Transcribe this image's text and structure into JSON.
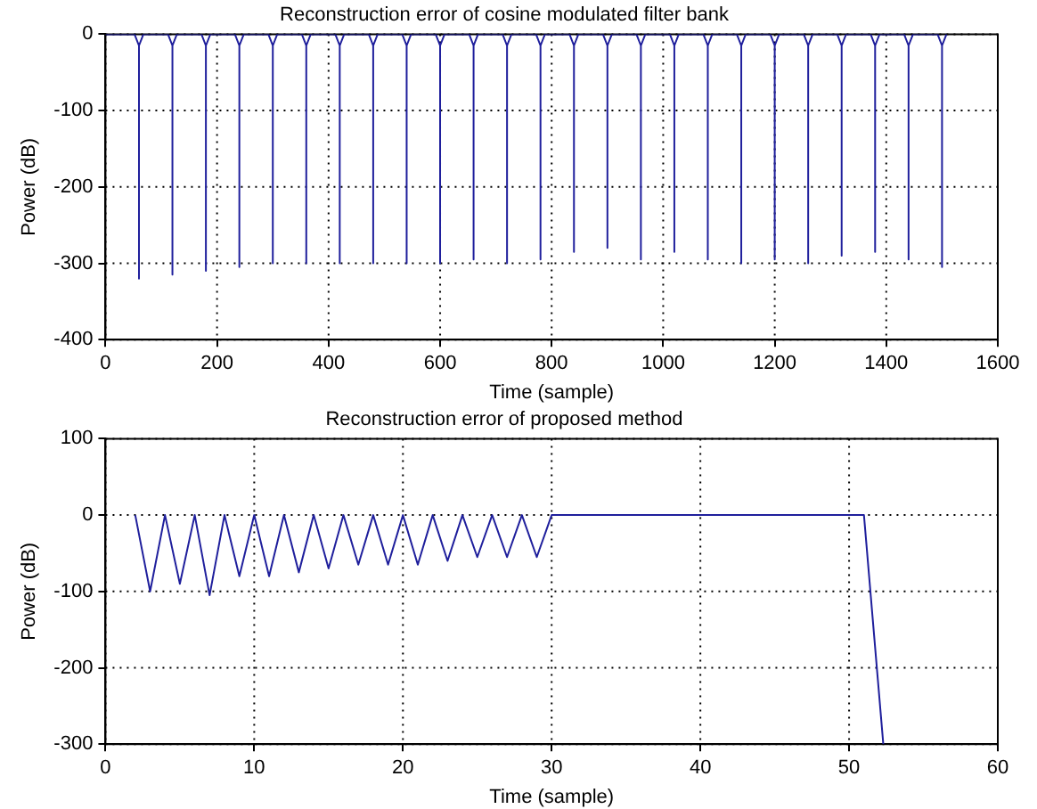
{
  "chart_data": [
    {
      "type": "line",
      "title": "Reconstruction error of cosine modulated filter bank",
      "xlabel": "Time (sample)",
      "ylabel": "Power (dB)",
      "xlim": [
        0,
        1600
      ],
      "xticks": [
        0,
        200,
        400,
        600,
        800,
        1000,
        1200,
        1400,
        1600
      ],
      "ylim": [
        -400,
        0
      ],
      "yticks": [
        -400,
        -300,
        -200,
        -100,
        0
      ],
      "grid": true,
      "legend": false,
      "marker": "none",
      "line_style": "solid",
      "series": [
        {
          "color": "#1f1f9c",
          "x": [
            0,
            52,
            60,
            60,
            60,
            68,
            112,
            120,
            120,
            120,
            128,
            172,
            180,
            180,
            180,
            188,
            232,
            240,
            240,
            240,
            248,
            292,
            300,
            300,
            300,
            308,
            352,
            360,
            360,
            360,
            368,
            412,
            420,
            420,
            420,
            428,
            472,
            480,
            480,
            480,
            488,
            532,
            540,
            540,
            540,
            548,
            592,
            600,
            600,
            600,
            608,
            652,
            660,
            660,
            660,
            668,
            712,
            720,
            720,
            720,
            728,
            772,
            780,
            780,
            780,
            788,
            832,
            840,
            840,
            840,
            848,
            892,
            900,
            900,
            900,
            908,
            952,
            960,
            960,
            960,
            968,
            1012,
            1020,
            1020,
            1020,
            1028,
            1072,
            1080,
            1080,
            1080,
            1088,
            1132,
            1140,
            1140,
            1140,
            1148,
            1192,
            1200,
            1200,
            1200,
            1208,
            1252,
            1260,
            1260,
            1260,
            1268,
            1312,
            1320,
            1320,
            1320,
            1328,
            1372,
            1380,
            1380,
            1380,
            1388,
            1432,
            1440,
            1440,
            1440,
            1448,
            1492,
            1500,
            1500,
            1500,
            1508
          ],
          "values": [
            0,
            0,
            -15,
            -320,
            -15,
            0,
            0,
            -15,
            -315,
            -15,
            0,
            0,
            -15,
            -310,
            -15,
            0,
            0,
            -15,
            -305,
            -15,
            0,
            0,
            -15,
            -300,
            -15,
            0,
            0,
            -15,
            -300,
            -15,
            0,
            0,
            -15,
            -300,
            -15,
            0,
            0,
            -15,
            -300,
            -15,
            0,
            0,
            -15,
            -300,
            -15,
            0,
            0,
            -15,
            -300,
            -15,
            0,
            0,
            -15,
            -295,
            -15,
            0,
            0,
            -15,
            -300,
            -15,
            0,
            0,
            -15,
            -295,
            -15,
            0,
            0,
            -15,
            -285,
            -15,
            0,
            0,
            -15,
            -280,
            -15,
            0,
            0,
            -15,
            -295,
            -15,
            0,
            0,
            -15,
            -285,
            -15,
            0,
            0,
            -15,
            -295,
            -15,
            0,
            0,
            -15,
            -300,
            -15,
            0,
            0,
            -15,
            -295,
            -15,
            0,
            0,
            -15,
            -300,
            -15,
            0,
            0,
            -15,
            -290,
            -15,
            0,
            0,
            -15,
            -285,
            -15,
            0,
            0,
            -15,
            -295,
            -15,
            0,
            0,
            -15,
            -305,
            -15,
            0
          ]
        }
      ]
    },
    {
      "type": "line",
      "title": "Reconstruction error of proposed method",
      "xlabel": "Time (sample)",
      "ylabel": "Power (dB)",
      "xlim": [
        0,
        60
      ],
      "xticks": [
        0,
        10,
        20,
        30,
        40,
        50,
        60
      ],
      "ylim": [
        -300,
        100
      ],
      "yticks": [
        -300,
        -200,
        -100,
        0,
        100
      ],
      "grid": true,
      "legend": false,
      "marker": "none",
      "line_style": "solid",
      "series": [
        {
          "color": "#1f1f9c",
          "x": [
            2,
            3,
            4,
            5,
            6,
            7,
            8,
            9,
            10,
            11,
            12,
            13,
            14,
            15,
            16,
            17,
            18,
            19,
            20,
            21,
            22,
            23,
            24,
            25,
            26,
            27,
            28,
            29,
            30,
            51,
            52.3
          ],
          "values": [
            0,
            -100,
            0,
            -90,
            0,
            -105,
            0,
            -80,
            0,
            -80,
            0,
            -75,
            0,
            -70,
            0,
            -65,
            0,
            -65,
            0,
            -65,
            0,
            -60,
            0,
            -55,
            0,
            -55,
            0,
            -55,
            0,
            0,
            -300
          ]
        }
      ]
    }
  ]
}
